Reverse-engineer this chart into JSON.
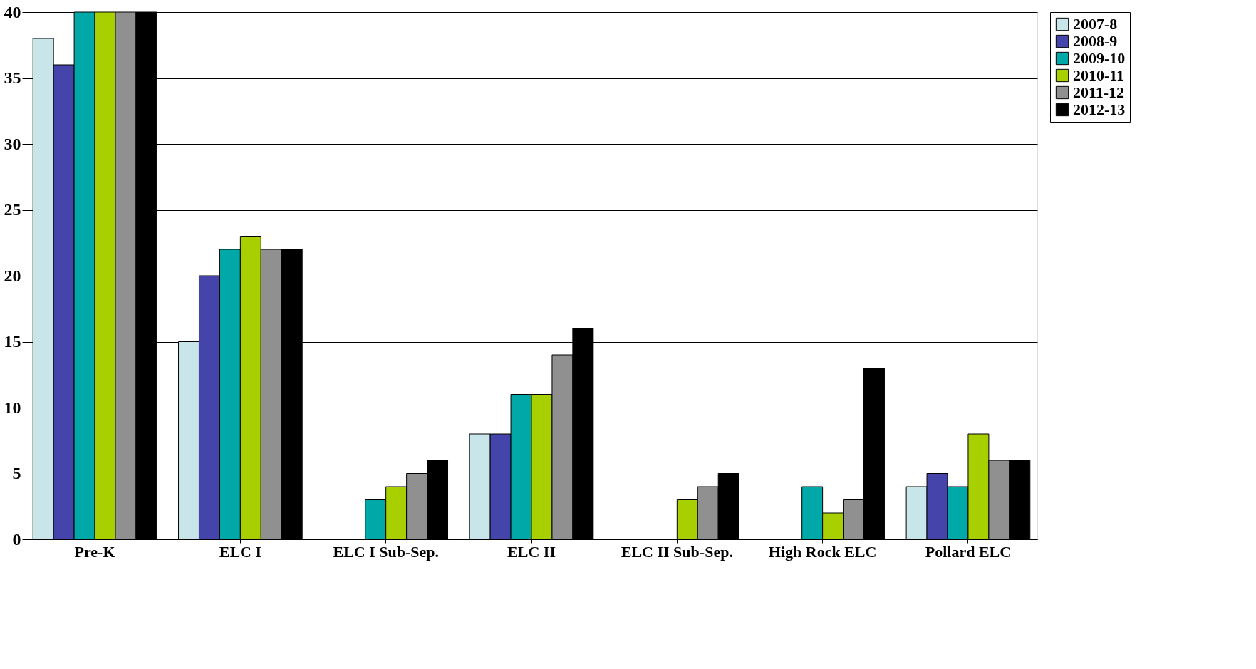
{
  "chart_data": {
    "type": "bar",
    "categories": [
      "Pre-K",
      "ELC I",
      "ELC I Sub-Sep.",
      "ELC II",
      "ELC II Sub-Sep.",
      "High Rock ELC",
      "Pollard ELC"
    ],
    "series": [
      {
        "name": "2007-8",
        "color": "#c8e6ea",
        "values": [
          38,
          15,
          null,
          8,
          null,
          null,
          4
        ]
      },
      {
        "name": "2008-9",
        "color": "#4444aa",
        "values": [
          36,
          20,
          null,
          8,
          null,
          null,
          5
        ]
      },
      {
        "name": "2009-10",
        "color": "#00a8a8",
        "values": [
          40,
          22,
          3,
          11,
          null,
          4,
          4
        ]
      },
      {
        "name": "2010-11",
        "color": "#a8d000",
        "values": [
          40,
          23,
          4,
          11,
          3,
          2,
          8
        ]
      },
      {
        "name": "2011-12",
        "color": "#909090",
        "values": [
          40,
          22,
          5,
          14,
          4,
          3,
          6
        ]
      },
      {
        "name": "2012-13",
        "color": "#000000",
        "values": [
          40,
          22,
          6,
          16,
          5,
          13,
          6
        ]
      }
    ],
    "ylim": [
      0,
      40
    ],
    "yticks": [
      0,
      5,
      10,
      15,
      20,
      25,
      30,
      35,
      40
    ],
    "grid": "y",
    "legend": "right"
  }
}
